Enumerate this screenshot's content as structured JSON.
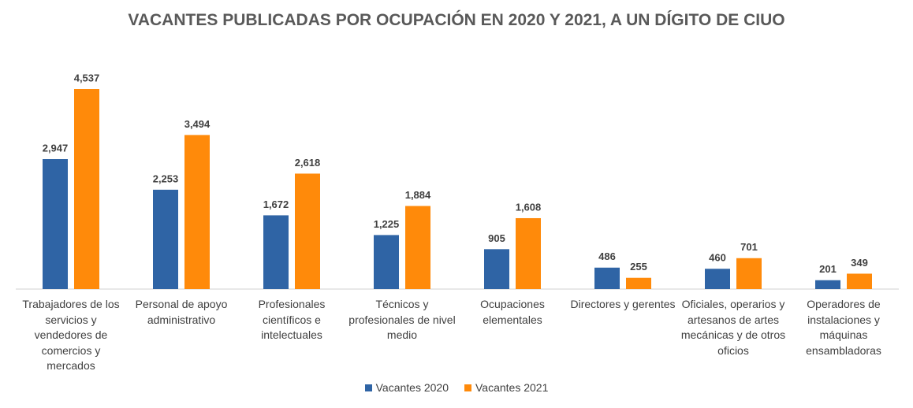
{
  "chart_data": {
    "type": "bar",
    "title": "VACANTES PUBLICADAS POR OCUPACIÓN EN 2020 Y 2021, A UN DÍGITO DE CIUO",
    "categories": [
      "Trabajadores de los servicios y vendedores de comercios y mercados",
      "Personal de apoyo administrativo",
      "Profesionales científicos e intelectuales",
      "Técnicos y profesionales de nivel medio",
      "Ocupaciones elementales",
      "Directores y gerentes",
      "Oficiales, operarios y artesanos de artes mecánicas y de otros oficios",
      "Operadores de instalaciones y máquinas ensambladoras"
    ],
    "series": [
      {
        "name": "Vacantes 2020",
        "color": "#2f64a5",
        "values": [
          2947,
          2253,
          1672,
          1225,
          905,
          486,
          460,
          201
        ],
        "value_labels": [
          "2,947",
          "2,253",
          "1,672",
          "1,225",
          "905",
          "486",
          "460",
          "201"
        ]
      },
      {
        "name": "Vacantes 2021",
        "color": "#ff8a0a",
        "values": [
          4537,
          3494,
          2618,
          1884,
          1608,
          255,
          701,
          349
        ],
        "value_labels": [
          "4,537",
          "3,494",
          "2,618",
          "1,884",
          "1,608",
          "255",
          "701",
          "349"
        ]
      }
    ],
    "legend": "bottom"
  }
}
